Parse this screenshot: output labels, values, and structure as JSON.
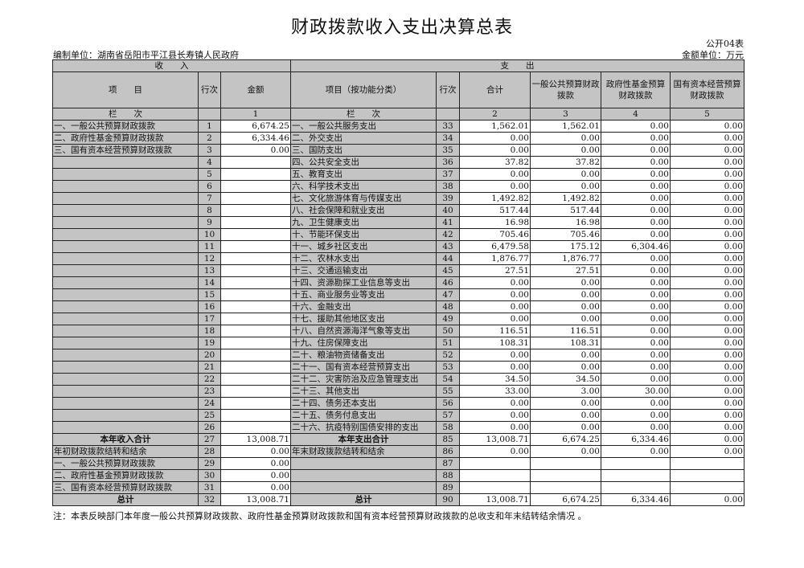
{
  "title": "财政拨款收入支出决算总表",
  "form_code": "公开04表",
  "unit": "编制单位：湖南省岳阳市平江县长寿镇人民政府",
  "money_unit": "金额单位：万元",
  "headers": {
    "income": "收　　入",
    "expense": "支　　出",
    "item": "项　　目",
    "row_no": "行次",
    "amount": "金额",
    "func_item": "项目（按功能分类）",
    "total": "合计",
    "general": "一般公共预算财政拨款",
    "fund": "政府性基金预算财政拨款",
    "state": "国有资本经营预算财政拨款",
    "col_label": "栏　　次",
    "col1": "1",
    "col2": "2",
    "col3": "3",
    "col4": "4",
    "col5": "5"
  },
  "rows": [
    {
      "in_item": "一、一般公共预算财政拨款",
      "in_no": "1",
      "in_amt": "6,674.25",
      "ex_item": "一、一般公共服务支出",
      "ex_no": "33",
      "v": [
        "1,562.01",
        "1,562.01",
        "0.00",
        "0.00"
      ]
    },
    {
      "in_item": "二、政府性基金预算财政拨款",
      "in_no": "2",
      "in_amt": "6,334.46",
      "ex_item": "二、外交支出",
      "ex_no": "34",
      "v": [
        "0.00",
        "0.00",
        "0.00",
        "0.00"
      ]
    },
    {
      "in_item": "三、国有资本经营预算财政拨款",
      "in_no": "3",
      "in_amt": "0.00",
      "ex_item": "三、国防支出",
      "ex_no": "35",
      "v": [
        "0.00",
        "0.00",
        "0.00",
        "0.00"
      ]
    },
    {
      "in_item": "",
      "in_no": "4",
      "in_amt": "",
      "ex_item": "四、公共安全支出",
      "ex_no": "36",
      "v": [
        "37.82",
        "37.82",
        "0.00",
        "0.00"
      ]
    },
    {
      "in_item": "",
      "in_no": "5",
      "in_amt": "",
      "ex_item": "五、教育支出",
      "ex_no": "37",
      "v": [
        "0.00",
        "0.00",
        "0.00",
        "0.00"
      ]
    },
    {
      "in_item": "",
      "in_no": "6",
      "in_amt": "",
      "ex_item": "六、科学技术支出",
      "ex_no": "38",
      "v": [
        "0.00",
        "0.00",
        "0.00",
        "0.00"
      ]
    },
    {
      "in_item": "",
      "in_no": "7",
      "in_amt": "",
      "ex_item": "七、文化旅游体育与传媒支出",
      "ex_no": "39",
      "v": [
        "1,492.82",
        "1,492.82",
        "0.00",
        "0.00"
      ]
    },
    {
      "in_item": "",
      "in_no": "8",
      "in_amt": "",
      "ex_item": "八、社会保障和就业支出",
      "ex_no": "40",
      "v": [
        "517.44",
        "517.44",
        "0.00",
        "0.00"
      ]
    },
    {
      "in_item": "",
      "in_no": "9",
      "in_amt": "",
      "ex_item": "九、卫生健康支出",
      "ex_no": "41",
      "v": [
        "16.98",
        "16.98",
        "0.00",
        "0.00"
      ]
    },
    {
      "in_item": "",
      "in_no": "10",
      "in_amt": "",
      "ex_item": "十、节能环保支出",
      "ex_no": "42",
      "v": [
        "705.46",
        "705.46",
        "0.00",
        "0.00"
      ]
    },
    {
      "in_item": "",
      "in_no": "11",
      "in_amt": "",
      "ex_item": "十一、城乡社区支出",
      "ex_no": "43",
      "v": [
        "6,479.58",
        "175.12",
        "6,304.46",
        "0.00"
      ]
    },
    {
      "in_item": "",
      "in_no": "12",
      "in_amt": "",
      "ex_item": "十二、农林水支出",
      "ex_no": "44",
      "v": [
        "1,876.77",
        "1,876.77",
        "0.00",
        "0.00"
      ]
    },
    {
      "in_item": "",
      "in_no": "13",
      "in_amt": "",
      "ex_item": "十三、交通运输支出",
      "ex_no": "45",
      "v": [
        "27.51",
        "27.51",
        "0.00",
        "0.00"
      ]
    },
    {
      "in_item": "",
      "in_no": "14",
      "in_amt": "",
      "ex_item": "十四、资源勘探工业信息等支出",
      "ex_no": "46",
      "v": [
        "0.00",
        "0.00",
        "0.00",
        "0.00"
      ]
    },
    {
      "in_item": "",
      "in_no": "15",
      "in_amt": "",
      "ex_item": "十五、商业服务业等支出",
      "ex_no": "47",
      "v": [
        "0.00",
        "0.00",
        "0.00",
        "0.00"
      ]
    },
    {
      "in_item": "",
      "in_no": "16",
      "in_amt": "",
      "ex_item": "十六、金融支出",
      "ex_no": "48",
      "v": [
        "0.00",
        "0.00",
        "0.00",
        "0.00"
      ]
    },
    {
      "in_item": "",
      "in_no": "17",
      "in_amt": "",
      "ex_item": "十七、援助其他地区支出",
      "ex_no": "49",
      "v": [
        "0.00",
        "0.00",
        "0.00",
        "0.00"
      ]
    },
    {
      "in_item": "",
      "in_no": "18",
      "in_amt": "",
      "ex_item": "十八、自然资源海洋气象等支出",
      "ex_no": "50",
      "v": [
        "116.51",
        "116.51",
        "0.00",
        "0.00"
      ]
    },
    {
      "in_item": "",
      "in_no": "19",
      "in_amt": "",
      "ex_item": "十九、住房保障支出",
      "ex_no": "51",
      "v": [
        "108.31",
        "108.31",
        "0.00",
        "0.00"
      ]
    },
    {
      "in_item": "",
      "in_no": "20",
      "in_amt": "",
      "ex_item": "二十、粮油物资储备支出",
      "ex_no": "52",
      "v": [
        "0.00",
        "0.00",
        "0.00",
        "0.00"
      ]
    },
    {
      "in_item": "",
      "in_no": "21",
      "in_amt": "",
      "ex_item": "二十一、国有资本经营预算支出",
      "ex_no": "53",
      "v": [
        "0.00",
        "0.00",
        "0.00",
        "0.00"
      ]
    },
    {
      "in_item": "",
      "in_no": "22",
      "in_amt": "",
      "ex_item": "二十二、灾害防治及应急管理支出",
      "ex_no": "54",
      "v": [
        "34.50",
        "34.50",
        "0.00",
        "0.00"
      ]
    },
    {
      "in_item": "",
      "in_no": "23",
      "in_amt": "",
      "ex_item": "二十三、其他支出",
      "ex_no": "55",
      "v": [
        "33.00",
        "3.00",
        "30.00",
        "0.00"
      ]
    },
    {
      "in_item": "",
      "in_no": "24",
      "in_amt": "",
      "ex_item": "二十四、债务还本支出",
      "ex_no": "56",
      "v": [
        "0.00",
        "0.00",
        "0.00",
        "0.00"
      ]
    },
    {
      "in_item": "",
      "in_no": "25",
      "in_amt": "",
      "ex_item": "二十五、债务付息支出",
      "ex_no": "57",
      "v": [
        "0.00",
        "0.00",
        "0.00",
        "0.00"
      ]
    },
    {
      "in_item": "",
      "in_no": "26",
      "in_amt": "",
      "ex_item": "二十六、抗疫特别国债安排的支出",
      "ex_no": "58",
      "v": [
        "0.00",
        "0.00",
        "0.00",
        "0.00"
      ]
    },
    {
      "in_item": "本年收入合计",
      "in_no": "27",
      "in_amt": "13,008.71",
      "ex_item": "本年支出合计",
      "ex_no": "85",
      "v": [
        "13,008.71",
        "6,674.25",
        "6,334.46",
        "0.00"
      ],
      "bold": true
    },
    {
      "in_item": "年初财政拨款结转和结余",
      "in_no": "28",
      "in_amt": "0.00",
      "ex_item": "年末财政拨款结转和结余",
      "ex_no": "86",
      "v": [
        "0.00",
        "0.00",
        "0.00",
        "0.00"
      ]
    },
    {
      "in_item": "一、一般公共预算财政拨款",
      "in_no": "29",
      "in_amt": "0.00",
      "ex_item": "",
      "ex_no": "87",
      "v": [
        "",
        "",
        "",
        ""
      ]
    },
    {
      "in_item": "二、政府性基金预算财政拨款",
      "in_no": "30",
      "in_amt": "0.00",
      "ex_item": "",
      "ex_no": "88",
      "v": [
        "",
        "",
        "",
        ""
      ]
    },
    {
      "in_item": "三、国有资本经营预算财政拨款",
      "in_no": "31",
      "in_amt": "0.00",
      "ex_item": "",
      "ex_no": "89",
      "v": [
        "",
        "",
        "",
        ""
      ]
    },
    {
      "in_item": "总计",
      "in_no": "32",
      "in_amt": "13,008.71",
      "ex_item": "总计",
      "ex_no": "90",
      "v": [
        "13,008.71",
        "6,674.25",
        "6,334.46",
        "0.00"
      ],
      "bold": true
    }
  ],
  "note": "注：本表反映部门本年度一般公共预算财政拨款、政府性基金预算财政拨款和国有资本经营预算财政拨款的总收支和年末结转结余情况 。"
}
